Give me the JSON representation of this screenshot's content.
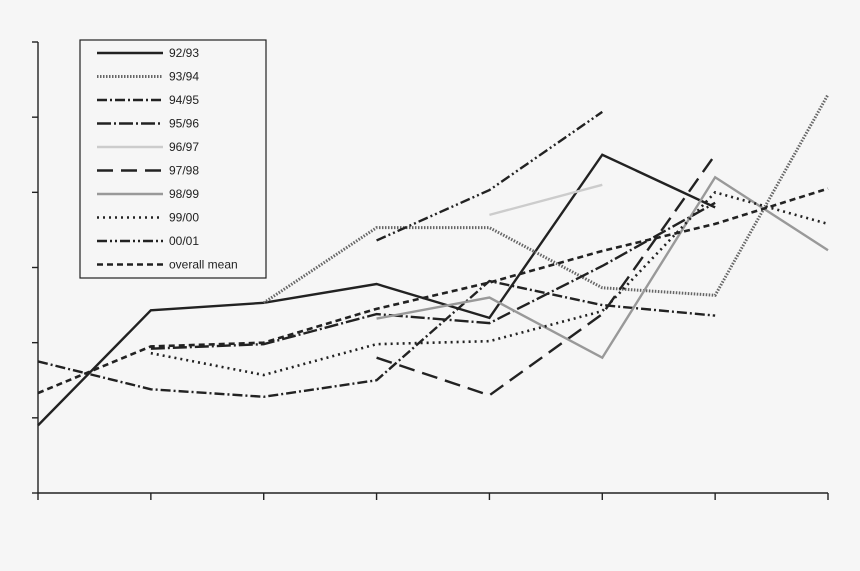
{
  "chart_data": {
    "type": "line",
    "x": [
      1,
      2,
      3,
      4,
      5,
      6,
      7,
      8
    ],
    "ylim": [
      0,
      6
    ],
    "xlim": [
      1,
      8
    ],
    "grid": false,
    "legend_position": "top-left",
    "series": [
      {
        "name": "92/93",
        "color": "#222222",
        "style": "solid",
        "values": [
          0.9,
          2.43,
          2.53,
          2.78,
          2.33,
          4.5,
          3.8,
          null
        ]
      },
      {
        "name": "93/94",
        "color": "#666666",
        "style": "dotted-dense",
        "values": [
          null,
          null,
          2.53,
          3.53,
          3.53,
          2.73,
          2.63,
          5.3
        ]
      },
      {
        "name": "94/95",
        "color": "#222222",
        "style": "dashdot",
        "values": [
          1.75,
          1.38,
          1.28,
          1.5,
          2.82,
          2.5,
          2.36,
          null
        ]
      },
      {
        "name": "95/96",
        "color": "#222222",
        "style": "dashdot-long",
        "values": [
          null,
          1.92,
          1.98,
          2.38,
          2.26,
          3.02,
          3.86,
          null
        ]
      },
      {
        "name": "96/97",
        "color": "#cccccc",
        "style": "solid",
        "values": [
          null,
          null,
          null,
          null,
          3.7,
          4.1,
          null,
          null
        ]
      },
      {
        "name": "97/98",
        "color": "#222222",
        "style": "dashed-long",
        "values": [
          null,
          null,
          null,
          1.8,
          1.3,
          2.38,
          4.5,
          null
        ]
      },
      {
        "name": "98/99",
        "color": "#999999",
        "style": "solid",
        "values": [
          null,
          null,
          null,
          2.32,
          2.6,
          1.8,
          4.2,
          3.23
        ]
      },
      {
        "name": "99/00",
        "color": "#222222",
        "style": "dotted",
        "values": [
          null,
          1.86,
          1.57,
          1.98,
          2.02,
          2.42,
          4.0,
          3.58
        ]
      },
      {
        "name": "00/01",
        "color": "#222222",
        "style": "dashdotdot",
        "values": [
          null,
          null,
          null,
          3.36,
          4.03,
          5.07,
          null,
          null
        ]
      },
      {
        "name": "overall mean",
        "color": "#222222",
        "style": "dashed",
        "values": [
          1.33,
          1.95,
          2.0,
          2.45,
          2.8,
          3.22,
          3.58,
          4.05
        ]
      }
    ]
  }
}
